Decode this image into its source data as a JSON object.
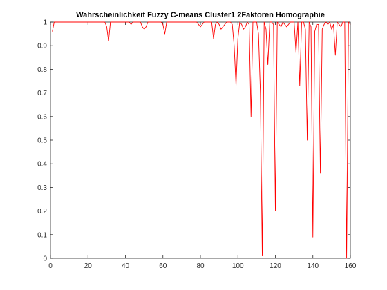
{
  "chart_data": {
    "type": "line",
    "title": "Wahrscheinlichkeit Fuzzy C-means Cluster1 2Faktoren Homographie",
    "xlabel": "",
    "ylabel": "",
    "xlim": [
      0,
      160
    ],
    "ylim": [
      0,
      1
    ],
    "xticks": [
      0,
      20,
      40,
      60,
      80,
      100,
      120,
      140,
      160
    ],
    "yticks": [
      0,
      0.1,
      0.2,
      0.3,
      0.4,
      0.5,
      0.6,
      0.7,
      0.8,
      0.9,
      1
    ],
    "grid": false,
    "line_color": "#ff0000",
    "series": [
      {
        "x": [
          1,
          2,
          3,
          5,
          8,
          10,
          12,
          14,
          16,
          18,
          20,
          22,
          24,
          26,
          28,
          29,
          30,
          31,
          32,
          33,
          35,
          38,
          40,
          42,
          43,
          44,
          45,
          47,
          48,
          49,
          50,
          51,
          52,
          53,
          55,
          58,
          59,
          60,
          61,
          62,
          63,
          65,
          68,
          70,
          72,
          74,
          76,
          78,
          79,
          80,
          81,
          82,
          84,
          85,
          86,
          87,
          88,
          89,
          90,
          91,
          92,
          94,
          95,
          96,
          97,
          98,
          99,
          100,
          101,
          102,
          103,
          104,
          105,
          106,
          107,
          108,
          109,
          110,
          111,
          112,
          113,
          114,
          115,
          116,
          117,
          118,
          119,
          120,
          121,
          122,
          123,
          124,
          125,
          126,
          127,
          128,
          129,
          130,
          131,
          132,
          133,
          134,
          135,
          136,
          137,
          138,
          139,
          140,
          141,
          142,
          143,
          144,
          145,
          146,
          147,
          148,
          149,
          150,
          151,
          152,
          153,
          154,
          155,
          156,
          157,
          158,
          159,
          160
        ],
        "values": [
          0.96,
          1.0,
          1.0,
          1.0,
          1.0,
          1.0,
          1.0,
          1.0,
          1.0,
          1.0,
          1.0,
          1.0,
          1.0,
          1.0,
          1.0,
          1.0,
          0.98,
          0.92,
          1.0,
          1.0,
          1.0,
          1.0,
          1.0,
          1.0,
          0.99,
          1.0,
          1.0,
          1.0,
          1.0,
          0.98,
          0.97,
          0.98,
          1.0,
          1.0,
          1.0,
          1.0,
          1.0,
          0.99,
          0.95,
          1.0,
          1.0,
          1.0,
          1.0,
          1.0,
          1.0,
          1.0,
          1.0,
          1.0,
          0.99,
          0.98,
          0.99,
          1.0,
          1.0,
          1.0,
          1.0,
          0.93,
          0.99,
          1.0,
          0.99,
          0.97,
          0.98,
          1.0,
          1.0,
          1.0,
          0.99,
          0.9,
          0.73,
          0.93,
          1.0,
          0.99,
          0.97,
          0.98,
          1.0,
          0.99,
          0.6,
          1.0,
          1.0,
          1.0,
          0.95,
          0.7,
          0.01,
          1.0,
          0.97,
          0.82,
          1.0,
          1.0,
          0.99,
          0.2,
          1.0,
          0.99,
          0.98,
          1.0,
          0.99,
          0.98,
          0.99,
          1.0,
          1.0,
          1.0,
          0.87,
          1.0,
          0.73,
          1.0,
          1.0,
          0.97,
          0.5,
          1.0,
          0.98,
          0.09,
          0.96,
          0.99,
          0.99,
          0.36,
          0.97,
          0.99,
          1.0,
          0.99,
          1.0,
          0.97,
          0.99,
          0.86,
          1.0,
          0.99,
          0.98,
          1.0,
          1.0,
          0.0,
          1.0,
          0.99
        ]
      }
    ]
  }
}
